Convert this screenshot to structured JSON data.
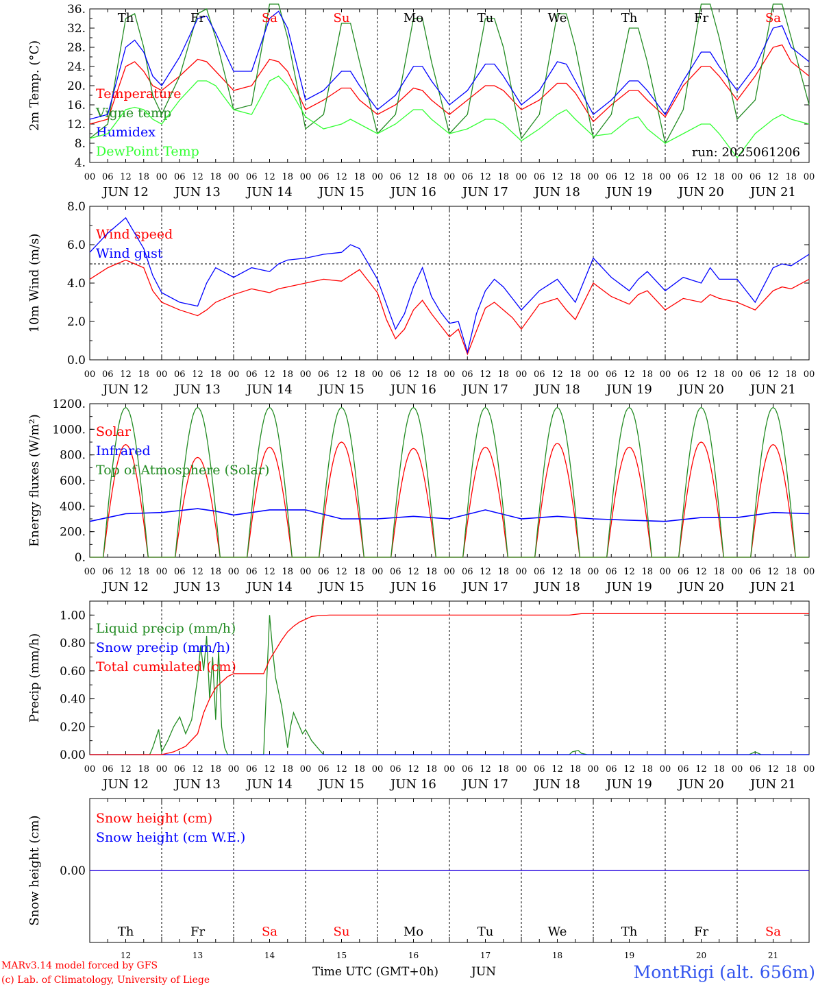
{
  "chart_data": [
    {
      "type": "line",
      "id": "temp",
      "ylabel": "2m Temp. (°C)",
      "ylim": [
        4,
        36
      ],
      "yticks": [
        "4.",
        "8.",
        "12.",
        "16.",
        "20.",
        "24.",
        "28.",
        "32.",
        "36."
      ],
      "x_unit": "hours since JUN 12 00 UTC",
      "xlim": [
        0,
        240
      ],
      "run_label": "run: 2025061206",
      "series": [
        {
          "name": "Temperature",
          "color": "#ff0000",
          "x": [
            0,
            6,
            12,
            15,
            18,
            21,
            24,
            30,
            36,
            39,
            42,
            48,
            54,
            60,
            63,
            66,
            72,
            78,
            84,
            87,
            90,
            96,
            102,
            108,
            111,
            114,
            120,
            126,
            132,
            135,
            138,
            144,
            150,
            156,
            159,
            162,
            168,
            174,
            180,
            183,
            186,
            192,
            198,
            204,
            207,
            210,
            216,
            222,
            228,
            231,
            234,
            240
          ],
          "y": [
            12,
            13,
            24,
            25,
            23,
            20,
            19,
            22,
            25.5,
            25,
            23,
            19,
            20,
            25.5,
            25,
            23,
            15,
            17,
            19.5,
            19.5,
            17,
            14,
            16,
            19.5,
            19,
            17,
            14,
            17,
            20,
            20,
            19,
            15,
            17,
            20.5,
            20.5,
            18.5,
            12.5,
            16,
            19,
            19,
            17,
            13.5,
            20,
            24,
            24,
            22,
            17,
            22,
            28,
            28.5,
            25,
            22
          ]
        },
        {
          "name": "Vigne temp",
          "color": "#228b22",
          "x": [
            0,
            6,
            12,
            15,
            18,
            21,
            24,
            30,
            36,
            39,
            42,
            48,
            54,
            60,
            63,
            66,
            72,
            78,
            84,
            87,
            90,
            96,
            102,
            108,
            111,
            114,
            120,
            126,
            132,
            135,
            138,
            144,
            150,
            156,
            159,
            162,
            168,
            174,
            180,
            183,
            186,
            192,
            198,
            204,
            207,
            210,
            216,
            222,
            228,
            231,
            234,
            240
          ],
          "y": [
            9,
            12,
            34,
            35,
            28,
            18,
            14,
            22,
            35,
            36,
            30,
            15,
            16,
            37,
            37,
            30,
            11,
            14,
            33,
            33,
            25,
            10,
            14,
            34,
            34,
            25,
            10,
            14,
            34,
            34,
            28,
            9,
            14,
            35,
            35,
            28,
            9,
            14,
            32,
            32,
            25,
            8,
            15,
            37,
            37,
            30,
            13,
            17,
            37,
            37,
            30,
            16
          ]
        },
        {
          "name": "Humidex",
          "color": "#0000ff",
          "x": [
            0,
            6,
            12,
            15,
            18,
            21,
            24,
            30,
            36,
            39,
            42,
            48,
            54,
            60,
            63,
            66,
            72,
            78,
            84,
            87,
            90,
            96,
            102,
            108,
            111,
            114,
            120,
            126,
            132,
            135,
            138,
            144,
            150,
            156,
            159,
            162,
            168,
            174,
            180,
            183,
            186,
            192,
            198,
            204,
            207,
            210,
            216,
            222,
            228,
            231,
            234,
            240
          ],
          "y": [
            13,
            14,
            28,
            29.5,
            27,
            22,
            20,
            26,
            34,
            34.5,
            31,
            23,
            23,
            34,
            35.5,
            32,
            17,
            19,
            23,
            23,
            20,
            15,
            18,
            24,
            24,
            21,
            16,
            19,
            24.5,
            24.5,
            22,
            16,
            19,
            25,
            24.5,
            21,
            14,
            17,
            21,
            21,
            19,
            14,
            21,
            27,
            27,
            24,
            19,
            24,
            32,
            32.5,
            28,
            25
          ]
        },
        {
          "name": "DewPoint Temp",
          "color": "#33ff33",
          "x": [
            0,
            6,
            12,
            15,
            18,
            21,
            24,
            30,
            36,
            39,
            42,
            48,
            54,
            60,
            63,
            66,
            72,
            78,
            84,
            87,
            90,
            96,
            102,
            108,
            111,
            114,
            120,
            126,
            132,
            135,
            138,
            144,
            150,
            156,
            159,
            162,
            168,
            174,
            180,
            183,
            186,
            192,
            198,
            204,
            207,
            210,
            216,
            222,
            228,
            231,
            234,
            240
          ],
          "y": [
            9,
            10,
            15,
            15.5,
            15,
            13,
            12,
            17,
            21,
            21,
            20,
            15,
            14,
            21,
            22,
            20,
            13.5,
            11,
            12,
            13,
            12,
            10,
            12,
            15,
            15,
            13,
            10,
            11,
            13,
            13,
            12,
            8.5,
            11,
            14,
            15,
            13,
            9.5,
            10,
            13,
            13.5,
            11,
            8,
            10,
            12,
            12,
            10,
            5,
            10,
            13,
            14,
            13,
            12
          ]
        }
      ]
    },
    {
      "type": "line",
      "id": "wind",
      "ylabel": "10m Wind (m/s)",
      "ylim": [
        0,
        8
      ],
      "yticks": [
        "0.0",
        "2.0",
        "4.0",
        "6.0",
        "8.0"
      ],
      "xlim": [
        0,
        240
      ],
      "reference_line": 5,
      "series": [
        {
          "name": "Wind speed",
          "color": "#ff0000",
          "x": [
            0,
            6,
            12,
            15,
            18,
            21,
            24,
            30,
            36,
            39,
            42,
            48,
            54,
            60,
            63,
            66,
            72,
            78,
            84,
            87,
            90,
            96,
            99,
            102,
            105,
            108,
            111,
            114,
            117,
            120,
            123,
            126,
            129,
            132,
            135,
            138,
            141,
            144,
            150,
            156,
            159,
            162,
            168,
            174,
            180,
            183,
            186,
            192,
            198,
            204,
            207,
            210,
            216,
            222,
            228,
            231,
            234,
            240
          ],
          "y": [
            4.2,
            4.8,
            5.2,
            5.0,
            4.8,
            3.6,
            3.0,
            2.6,
            2.3,
            2.6,
            3.0,
            3.4,
            3.7,
            3.5,
            3.7,
            3.8,
            4.0,
            4.2,
            4.1,
            4.4,
            4.7,
            3.5,
            2.1,
            1.1,
            1.6,
            2.6,
            3.1,
            2.4,
            1.8,
            1.2,
            1.6,
            0.3,
            1.5,
            2.7,
            3.0,
            2.6,
            2.2,
            1.6,
            2.9,
            3.2,
            2.6,
            2.1,
            4.0,
            3.3,
            2.9,
            3.4,
            3.6,
            2.6,
            3.2,
            3.0,
            3.4,
            3.2,
            3.0,
            2.6,
            3.6,
            3.8,
            3.7,
            4.2
          ]
        },
        {
          "name": "Wind gust",
          "color": "#0000ff",
          "x": [
            0,
            6,
            12,
            15,
            18,
            21,
            24,
            30,
            36,
            39,
            42,
            48,
            54,
            60,
            63,
            66,
            72,
            78,
            84,
            87,
            90,
            96,
            99,
            102,
            105,
            108,
            111,
            114,
            117,
            120,
            123,
            126,
            129,
            132,
            135,
            138,
            141,
            144,
            150,
            156,
            159,
            162,
            168,
            174,
            180,
            183,
            186,
            192,
            198,
            204,
            207,
            210,
            216,
            222,
            228,
            231,
            234,
            240
          ],
          "y": [
            5.6,
            6.6,
            7.4,
            6.6,
            5.8,
            4.4,
            3.5,
            3.0,
            2.8,
            4.0,
            4.8,
            4.3,
            4.8,
            4.6,
            5.0,
            5.2,
            5.3,
            5.5,
            5.6,
            6.0,
            5.8,
            4.2,
            2.9,
            1.6,
            2.4,
            3.8,
            4.8,
            3.3,
            2.5,
            1.9,
            2.0,
            0.4,
            2.4,
            3.6,
            4.2,
            3.8,
            3.2,
            2.6,
            3.6,
            4.2,
            3.6,
            3.0,
            5.3,
            4.3,
            3.6,
            4.2,
            4.6,
            3.6,
            4.3,
            4.0,
            4.8,
            4.2,
            4.2,
            3.0,
            4.8,
            5.0,
            4.9,
            5.5
          ]
        }
      ]
    },
    {
      "type": "line",
      "id": "energy",
      "ylabel": "Energy fluxes (W/m²)",
      "ylim": [
        0,
        1200
      ],
      "yticks": [
        "0.",
        "200.",
        "400.",
        "600.",
        "800.",
        "1000.",
        "1200."
      ],
      "xlim": [
        0,
        240
      ],
      "series": [
        {
          "name": "Solar",
          "color": "#ff0000",
          "peak_hour": 12,
          "daily_peaks": [
            880,
            780,
            860,
            900,
            850,
            860,
            890,
            860,
            900,
            880
          ]
        },
        {
          "name": "Infrared",
          "color": "#0000ff",
          "x": [
            0,
            12,
            24,
            36,
            42,
            48,
            60,
            72,
            84,
            96,
            108,
            120,
            132,
            144,
            156,
            168,
            180,
            192,
            204,
            216,
            228,
            240
          ],
          "y": [
            280,
            340,
            350,
            380,
            360,
            330,
            370,
            370,
            300,
            300,
            320,
            300,
            370,
            300,
            320,
            300,
            290,
            280,
            310,
            310,
            350,
            340
          ]
        },
        {
          "name": "Top of Atmosphere (Solar)",
          "color": "#228b22",
          "peak_hour": 12,
          "daily_peaks": [
            1170,
            1170,
            1170,
            1170,
            1170,
            1170,
            1170,
            1170,
            1170,
            1170
          ]
        }
      ]
    },
    {
      "type": "line",
      "id": "precip",
      "ylabel": "Precip (mm/h)",
      "ylim": [
        0,
        1.1
      ],
      "yticks": [
        "0.00",
        "0.20",
        "0.40",
        "0.60",
        "0.80",
        "1.00"
      ],
      "xlim": [
        0,
        240
      ],
      "series": [
        {
          "name": "Liquid precip (mm/h)",
          "color": "#228b22",
          "x": [
            0,
            20,
            21,
            23,
            24,
            26,
            28,
            30,
            32,
            34,
            36,
            37,
            38,
            39,
            40,
            41,
            42,
            43,
            44,
            45,
            46,
            48,
            58,
            59,
            60,
            61,
            62,
            63,
            64,
            65,
            66,
            67,
            68,
            69,
            70,
            71,
            72,
            74,
            76,
            78,
            80,
            120,
            160,
            161,
            163,
            164,
            166,
            220,
            222,
            224,
            240
          ],
          "y": [
            0,
            0,
            0.05,
            0.18,
            0.02,
            0.1,
            0.2,
            0.27,
            0.15,
            0.25,
            0.55,
            0.78,
            0.6,
            0.85,
            0.4,
            0.7,
            0.25,
            0.75,
            0.2,
            0.05,
            0,
            0,
            0,
            0.5,
            1.0,
            0.75,
            0.55,
            0.45,
            0.35,
            0.2,
            0.05,
            0.2,
            0.3,
            0.25,
            0.2,
            0.15,
            0.18,
            0.1,
            0.05,
            0,
            0,
            0,
            0,
            0.02,
            0.03,
            0.01,
            0,
            0,
            0.02,
            0,
            0
          ]
        },
        {
          "name": "Snow precip (mm/h)",
          "color": "#0000ff",
          "x": [
            0,
            240
          ],
          "y": [
            0,
            0
          ]
        },
        {
          "name": "Total cumulated (cm)",
          "color": "#ff0000",
          "x": [
            0,
            24,
            28,
            32,
            36,
            38,
            40,
            42,
            44,
            46,
            48,
            58,
            60,
            62,
            64,
            66,
            68,
            70,
            72,
            74,
            76,
            80,
            140,
            160,
            164,
            180,
            240
          ],
          "y": [
            0,
            0,
            0.02,
            0.06,
            0.15,
            0.3,
            0.4,
            0.48,
            0.52,
            0.56,
            0.58,
            0.58,
            0.68,
            0.75,
            0.82,
            0.88,
            0.92,
            0.95,
            0.97,
            0.99,
            0.995,
            1.0,
            1.0,
            1.0,
            1.01,
            1.01,
            1.01
          ]
        }
      ]
    },
    {
      "type": "line",
      "id": "snow",
      "ylabel": "Snow height (cm)",
      "ylim": [
        -1,
        1
      ],
      "yticks": [
        "0.00"
      ],
      "xlim": [
        0,
        240
      ],
      "series": [
        {
          "name": "Snow height (cm)",
          "color": "#ff0000",
          "x": [
            0,
            240
          ],
          "y": [
            0,
            0
          ]
        },
        {
          "name": "Snow height (cm W.E.)",
          "color": "#0000ff",
          "x": [
            0,
            240
          ],
          "y": [
            0,
            0
          ]
        }
      ]
    }
  ],
  "axis": {
    "hour_ticks": [
      "00",
      "06",
      "12",
      "18"
    ],
    "final_tick": "00",
    "dates": [
      "JUN 12",
      "JUN 13",
      "JUN 14",
      "JUN 15",
      "JUN 16",
      "JUN 17",
      "JUN 18",
      "JUN 19",
      "JUN 20",
      "JUN 21"
    ],
    "weekdays": [
      "Th",
      "Fr",
      "Sa",
      "Su",
      "Mo",
      "Tu",
      "We",
      "Th",
      "Fr",
      "Sa"
    ],
    "weekend_flags": [
      false,
      false,
      true,
      true,
      false,
      false,
      false,
      false,
      false,
      true
    ],
    "day_numbers": [
      "12",
      "13",
      "14",
      "15",
      "16",
      "17",
      "18",
      "19",
      "20",
      "21"
    ],
    "xlabel": "Time UTC (GMT+0h)",
    "month": "JUN"
  },
  "footer": {
    "credit_line1": "MARv3.14 model forced by GFS",
    "credit_line2": "(c) Lab. of Climatology, University of Liege",
    "station": "MontRigi (alt. 656m)"
  },
  "colors": {
    "red": "#ff0000",
    "green": "#228b22",
    "blue": "#0000ff",
    "lightgreen": "#33ff33",
    "weekend": "#ff0000",
    "station": "#3355ee"
  }
}
